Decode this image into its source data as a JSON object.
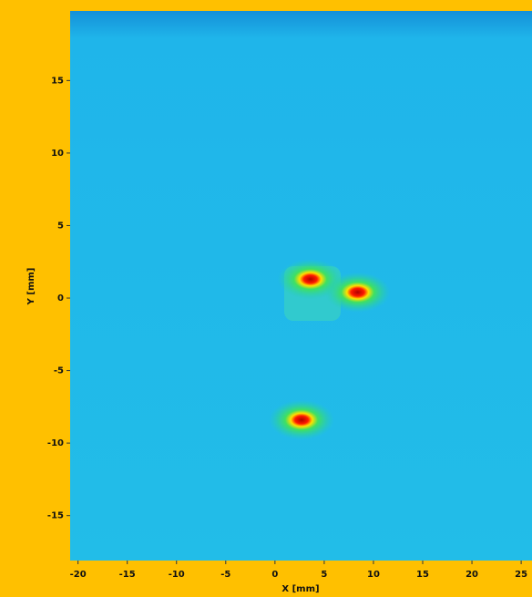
{
  "chart_data": {
    "type": "heatmap",
    "xlabel": "X [mm]",
    "ylabel": "Y [mm]",
    "xlim": [
      -20.8,
      26.1
    ],
    "ylim": [
      -18.1,
      19.8
    ],
    "xticks": [
      -20,
      -15,
      -10,
      -5,
      0,
      5,
      10,
      15,
      20,
      25
    ],
    "yticks": [
      -15,
      -10,
      -5,
      0,
      5,
      10,
      15
    ],
    "spots": {
      "x": [
        3.6,
        8.4,
        2.7
      ],
      "y": [
        1.3,
        0.4,
        -8.4
      ]
    }
  }
}
